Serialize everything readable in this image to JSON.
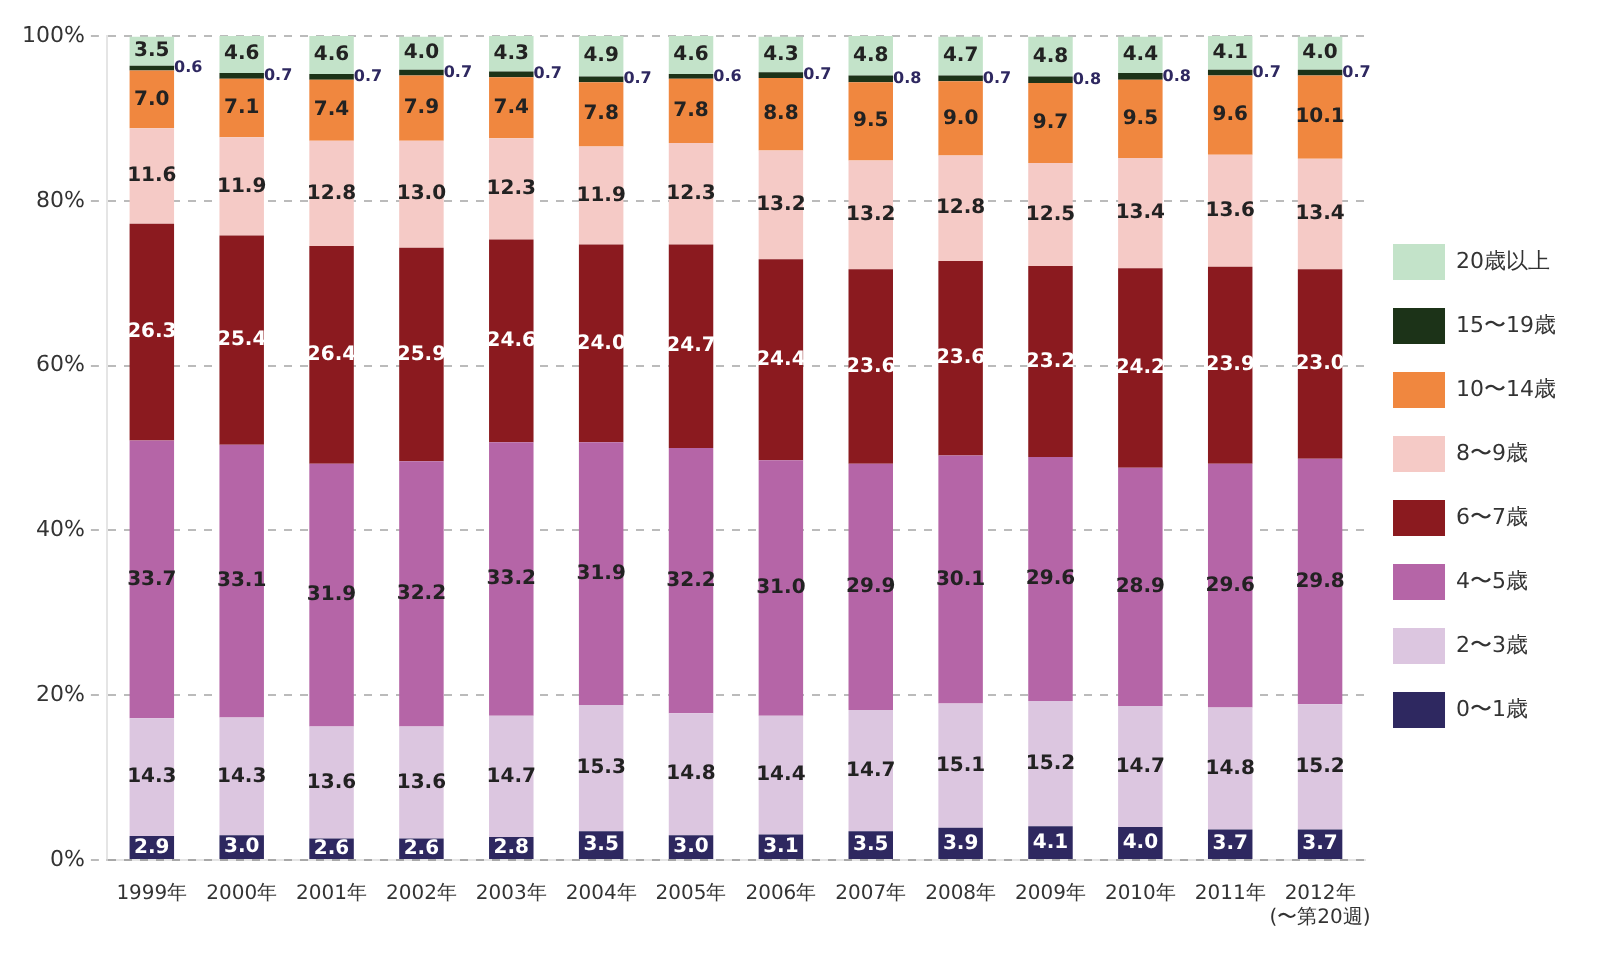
{
  "chart_data": {
    "type": "bar",
    "stacked": true,
    "categories": [
      "1999年",
      "2000年",
      "2001年",
      "2002年",
      "2003年",
      "2004年",
      "2005年",
      "2006年",
      "2007年",
      "2008年",
      "2009年",
      "2010年",
      "2011年",
      "2012年\n(〜第20週)"
    ],
    "series": [
      {
        "name": "0〜1歳",
        "color": "#2e2860",
        "values": [
          2.9,
          3.0,
          2.6,
          2.6,
          2.8,
          3.5,
          3.0,
          3.1,
          3.5,
          3.9,
          4.1,
          4.0,
          3.7,
          3.7
        ],
        "value_labels": [
          "2.9",
          "3.0",
          "2.6",
          "2.6",
          "2.8",
          "3.5",
          "3.0",
          "3.1",
          "3.5",
          "3.9",
          "4.1",
          "4.0",
          "3.7",
          "3.7"
        ]
      },
      {
        "name": "2〜3歳",
        "color": "#dcc6e0",
        "values": [
          14.3,
          14.3,
          13.6,
          13.6,
          14.7,
          15.3,
          14.8,
          14.4,
          14.7,
          15.1,
          15.2,
          14.7,
          14.8,
          15.2
        ],
        "value_labels": [
          "14.3",
          "14.3",
          "13.6",
          "13.6",
          "14.7",
          "15.3",
          "14.8",
          "14.4",
          "14.7",
          "15.1",
          "15.2",
          "14.7",
          "14.8",
          "15.2"
        ]
      },
      {
        "name": "4〜5歳",
        "color": "#b565a7",
        "values": [
          33.7,
          33.1,
          31.9,
          32.2,
          33.2,
          31.9,
          32.2,
          31.0,
          29.9,
          30.1,
          29.6,
          28.9,
          29.6,
          29.8
        ],
        "value_labels": [
          "33.7",
          "33.1",
          "31.9",
          "32.2",
          "33.2",
          "31.9",
          "32.2",
          "31.0",
          "29.9",
          "30.1",
          "29.6",
          "28.9",
          "29.6",
          "29.8"
        ]
      },
      {
        "name": "6〜7歳",
        "color": "#8b1a1f",
        "values": [
          26.3,
          25.4,
          26.4,
          25.9,
          24.6,
          24.0,
          24.7,
          24.4,
          23.6,
          23.6,
          23.2,
          24.2,
          23.9,
          23.0
        ],
        "value_labels": [
          "26.3",
          "25.4",
          "26.4",
          "25.9",
          "24.6",
          "24.0",
          "24.7",
          "24.4",
          "23.6",
          "23.6",
          "23.2",
          "24.2",
          "23.9",
          "23.0"
        ]
      },
      {
        "name": "8〜9歳",
        "color": "#f5cac6",
        "values": [
          11.6,
          11.9,
          12.8,
          13.0,
          12.3,
          11.9,
          12.3,
          13.2,
          13.2,
          12.8,
          12.5,
          13.4,
          13.6,
          13.4
        ],
        "value_labels": [
          "11.6",
          "11.9",
          "12.8",
          "13.0",
          "12.3",
          "11.9",
          "12.3",
          "13.2",
          "13.2",
          "12.8",
          "12.5",
          "13.4",
          "13.6",
          "13.4"
        ]
      },
      {
        "name": "10〜14歳",
        "color": "#f0873f",
        "values": [
          7.0,
          7.1,
          7.4,
          7.9,
          7.4,
          7.8,
          7.8,
          8.8,
          9.5,
          9.0,
          9.7,
          9.5,
          9.6,
          10.1
        ],
        "value_labels": [
          "7.0",
          "7.1",
          "7.4",
          "7.9",
          "7.4",
          "7.8",
          "7.8",
          "8.8",
          "9.5",
          "9.0",
          "9.7",
          "9.5",
          "9.6",
          "10.1"
        ]
      },
      {
        "name": "15〜19歳",
        "color": "#1c3318",
        "values": [
          0.6,
          0.7,
          0.7,
          0.7,
          0.7,
          0.7,
          0.6,
          0.7,
          0.8,
          0.7,
          0.8,
          0.8,
          0.7,
          0.7
        ],
        "value_labels": [
          "0.6",
          "0.7",
          "0.7",
          "0.7",
          "0.7",
          "0.7",
          "0.6",
          "0.7",
          "0.8",
          "0.7",
          "0.8",
          "0.8",
          "0.7",
          "0.7"
        ]
      },
      {
        "name": "20歳以上",
        "color": "#c3e3c9",
        "values": [
          3.5,
          4.6,
          4.6,
          4.0,
          4.3,
          4.9,
          4.6,
          4.3,
          4.8,
          4.7,
          4.8,
          4.4,
          4.1,
          4.0
        ],
        "value_labels": [
          "3.5",
          "4.6",
          "4.6",
          "4.0",
          "4.3",
          "4.9",
          "4.6",
          "4.3",
          "4.8",
          "4.7",
          "4.8",
          "4.4",
          "4.1",
          "4.0"
        ]
      }
    ],
    "ylim": [
      0,
      100
    ],
    "yticks": [
      {
        "value": 0,
        "label": "0%"
      },
      {
        "value": 20,
        "label": "20%"
      },
      {
        "value": 40,
        "label": "40%"
      },
      {
        "value": 60,
        "label": "60%"
      },
      {
        "value": 80,
        "label": "80%"
      },
      {
        "value": 100,
        "label": "100%"
      }
    ],
    "grid": "y",
    "legend": "right"
  }
}
